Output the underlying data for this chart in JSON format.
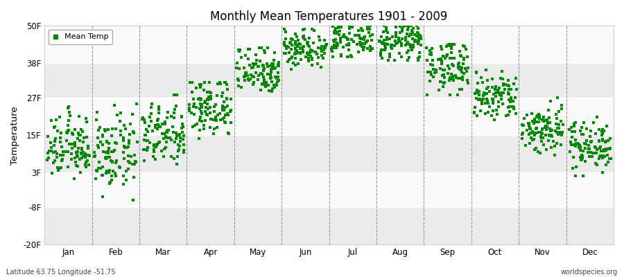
{
  "title": "Monthly Mean Temperatures 1901 - 2009",
  "ylabel": "Temperature",
  "xlabel_labels": [
    "Jan",
    "Feb",
    "Mar",
    "Apr",
    "May",
    "Jun",
    "Jul",
    "Aug",
    "Sep",
    "Oct",
    "Nov",
    "Dec"
  ],
  "ytick_labels": [
    "-20F",
    "-8F",
    "3F",
    "15F",
    "27F",
    "38F",
    "50F"
  ],
  "ytick_values": [
    -20,
    -8,
    3,
    15,
    27,
    38,
    50
  ],
  "ylim": [
    -20,
    50
  ],
  "legend_label": "Mean Temp",
  "marker_color": "#008800",
  "bg_color": "#f5f5f5",
  "band_colors": [
    "#ebebeb",
    "#f9f9f9"
  ],
  "footer_left": "Latitude 63.75 Longitude -51.75",
  "footer_right": "worldspecies.org",
  "monthly_means": [
    11,
    9,
    15,
    24,
    36,
    43,
    46,
    45,
    37,
    27,
    17,
    12
  ],
  "monthly_stds": [
    5,
    6,
    5,
    5,
    4,
    3,
    3,
    3,
    4,
    4,
    4,
    4
  ],
  "monthly_mins": [
    1,
    -12,
    1,
    14,
    27,
    36,
    40,
    39,
    28,
    20,
    6,
    2
  ],
  "monthly_maxs": [
    25,
    25,
    28,
    32,
    43,
    49,
    51,
    50,
    44,
    36,
    28,
    24
  ],
  "n_years": 109
}
